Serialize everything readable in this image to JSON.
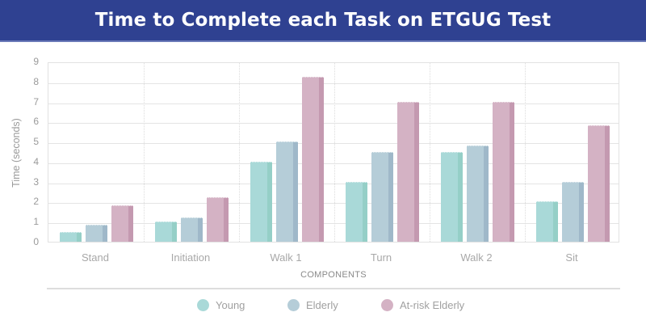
{
  "header": {
    "title": "Time to Complete each Task on ETGUG Test",
    "background": "#2f4191"
  },
  "axes": {
    "ylabel": "Time (seconds)",
    "xlabel": "COMPONENTS",
    "yticks": [
      "0",
      "1",
      "2",
      "3",
      "4",
      "5",
      "6",
      "7",
      "8",
      "9"
    ]
  },
  "legend": [
    {
      "label": "Young",
      "color": "#a9d9d8"
    },
    {
      "label": "Elderly",
      "color": "#b5cdd8"
    },
    {
      "label": "At-risk Elderly",
      "color": "#d4b2c4"
    }
  ],
  "chart_data": {
    "type": "bar",
    "title": "Time to Complete each Task on ETGUG Test",
    "xlabel": "COMPONENTS",
    "ylabel": "Time (seconds)",
    "ylim": [
      0,
      9
    ],
    "grid": true,
    "legend_position": "bottom",
    "categories": [
      "Stand",
      "Initiation",
      "Walk 1",
      "Turn",
      "Walk 2",
      "Sit"
    ],
    "series": [
      {
        "name": "Young",
        "color": "#a9d9d8",
        "values": [
          0.5,
          1.0,
          4.0,
          3.0,
          4.5,
          2.0
        ]
      },
      {
        "name": "Elderly",
        "color": "#b5cdd8",
        "values": [
          0.85,
          1.2,
          5.0,
          4.47,
          4.8,
          3.0
        ]
      },
      {
        "name": "At-risk Elderly",
        "color": "#d4b2c4",
        "values": [
          1.8,
          2.23,
          8.24,
          7.0,
          7.0,
          5.8
        ]
      }
    ]
  }
}
